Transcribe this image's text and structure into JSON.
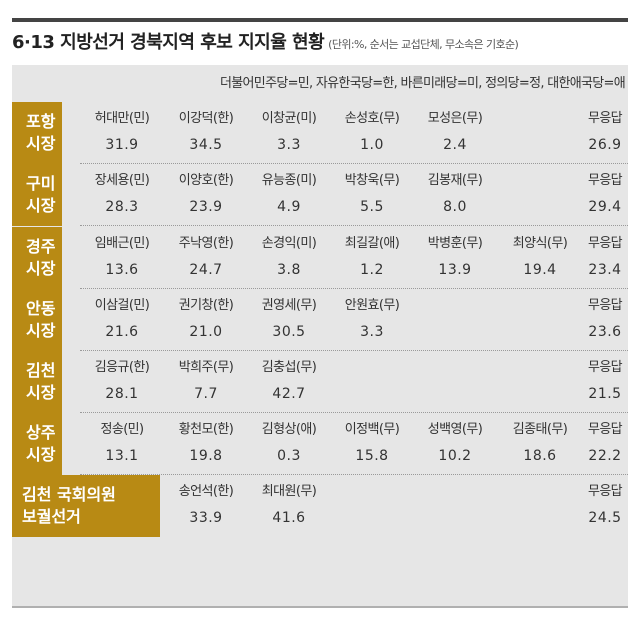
{
  "header": {
    "title": "6·13 지방선거 경북지역 후보 지지율 현황",
    "subtitle": "(단위:%, 순서는 교섭단체, 무소속은 기호순)",
    "legend": "더불어민주당=민, 자유한국당=한, 바른미래당=미, 정의당=정, 대한애국당=애"
  },
  "races": [
    {
      "label_line1": "포항",
      "label_line2": "시장",
      "candidates": [
        {
          "name": "허대만(민)",
          "value": "31.9"
        },
        {
          "name": "이강덕(한)",
          "value": "34.5"
        },
        {
          "name": "이창균(미)",
          "value": "3.3"
        },
        {
          "name": "손성호(무)",
          "value": "1.0"
        },
        {
          "name": "모성은(무)",
          "value": "2.4"
        },
        {
          "name": "",
          "value": ""
        },
        {
          "name": "무응답",
          "value": "26.9"
        }
      ]
    },
    {
      "label_line1": "구미",
      "label_line2": "시장",
      "candidates": [
        {
          "name": "장세용(민)",
          "value": "28.3"
        },
        {
          "name": "이양호(한)",
          "value": "23.9"
        },
        {
          "name": "유능종(미)",
          "value": "4.9"
        },
        {
          "name": "박창욱(무)",
          "value": "5.5"
        },
        {
          "name": "김봉재(무)",
          "value": "8.0"
        },
        {
          "name": "",
          "value": ""
        },
        {
          "name": "무응답",
          "value": "29.4"
        }
      ]
    },
    {
      "label_line1": "경주",
      "label_line2": "시장",
      "candidates": [
        {
          "name": "임배근(민)",
          "value": "13.6"
        },
        {
          "name": "주낙영(한)",
          "value": "24.7"
        },
        {
          "name": "손경익(미)",
          "value": "3.8"
        },
        {
          "name": "최길갈(애)",
          "value": "1.2"
        },
        {
          "name": "박병훈(무)",
          "value": "13.9"
        },
        {
          "name": "최양식(무)",
          "value": "19.4"
        },
        {
          "name": "무응답",
          "value": "23.4"
        }
      ]
    },
    {
      "label_line1": "안동",
      "label_line2": "시장",
      "candidates": [
        {
          "name": "이삼걸(민)",
          "value": "21.6"
        },
        {
          "name": "권기창(한)",
          "value": "21.0"
        },
        {
          "name": "권영세(무)",
          "value": "30.5"
        },
        {
          "name": "안원효(무)",
          "value": "3.3"
        },
        {
          "name": "",
          "value": ""
        },
        {
          "name": "",
          "value": ""
        },
        {
          "name": "무응답",
          "value": "23.6"
        }
      ]
    },
    {
      "label_line1": "김천",
      "label_line2": "시장",
      "candidates": [
        {
          "name": "김응규(한)",
          "value": "28.1"
        },
        {
          "name": "박희주(무)",
          "value": "7.7"
        },
        {
          "name": "김충섭(무)",
          "value": "42.7"
        },
        {
          "name": "",
          "value": ""
        },
        {
          "name": "",
          "value": ""
        },
        {
          "name": "",
          "value": ""
        },
        {
          "name": "무응답",
          "value": "21.5"
        }
      ]
    },
    {
      "label_line1": "상주",
      "label_line2": "시장",
      "candidates": [
        {
          "name": "정송(민)",
          "value": "13.1"
        },
        {
          "name": "황천모(한)",
          "value": "19.8"
        },
        {
          "name": "김형상(애)",
          "value": "0.3"
        },
        {
          "name": "이정백(무)",
          "value": "15.8"
        },
        {
          "name": "성백영(무)",
          "value": "10.2"
        },
        {
          "name": "김종태(무)",
          "value": "18.6"
        },
        {
          "name": "무응답",
          "value": "22.2"
        }
      ]
    },
    {
      "label_line1": "김천 국회의원",
      "label_line2": "보궐선거",
      "candidates": [
        {
          "name": "",
          "value": ""
        },
        {
          "name": "송언석(한)",
          "value": "33.9"
        },
        {
          "name": "최대원(무)",
          "value": "41.6"
        },
        {
          "name": "",
          "value": ""
        },
        {
          "name": "",
          "value": ""
        },
        {
          "name": "",
          "value": ""
        },
        {
          "name": "무응답",
          "value": "24.5"
        }
      ]
    }
  ]
}
